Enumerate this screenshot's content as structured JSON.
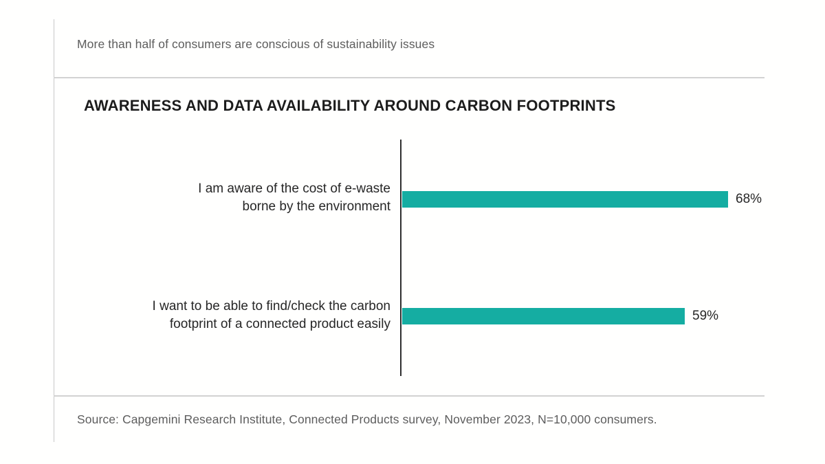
{
  "page": {
    "header_note": "More than half of consumers are conscious of sustainability issues",
    "source": "Source: Capgemini Research Institute, Connected Products survey, November 2023, N=10,000 consumers."
  },
  "chart_data": {
    "type": "bar",
    "orientation": "horizontal",
    "title": "AWARENESS AND DATA AVAILABILITY AROUND CARBON FOOTPRINTS",
    "categories": [
      "I am aware of the cost of e-waste\nborne by the environment",
      "I want to be able to find/check the carbon\nfootprint of a connected product easily"
    ],
    "values": [
      68,
      59
    ],
    "value_labels": [
      "68%",
      "59%"
    ],
    "xlabel": "",
    "ylabel": "",
    "xlim": [
      0,
      100
    ],
    "grid": false,
    "legend": false,
    "bar_color": "#15ada2",
    "axis_color": "#2e2e2e"
  }
}
